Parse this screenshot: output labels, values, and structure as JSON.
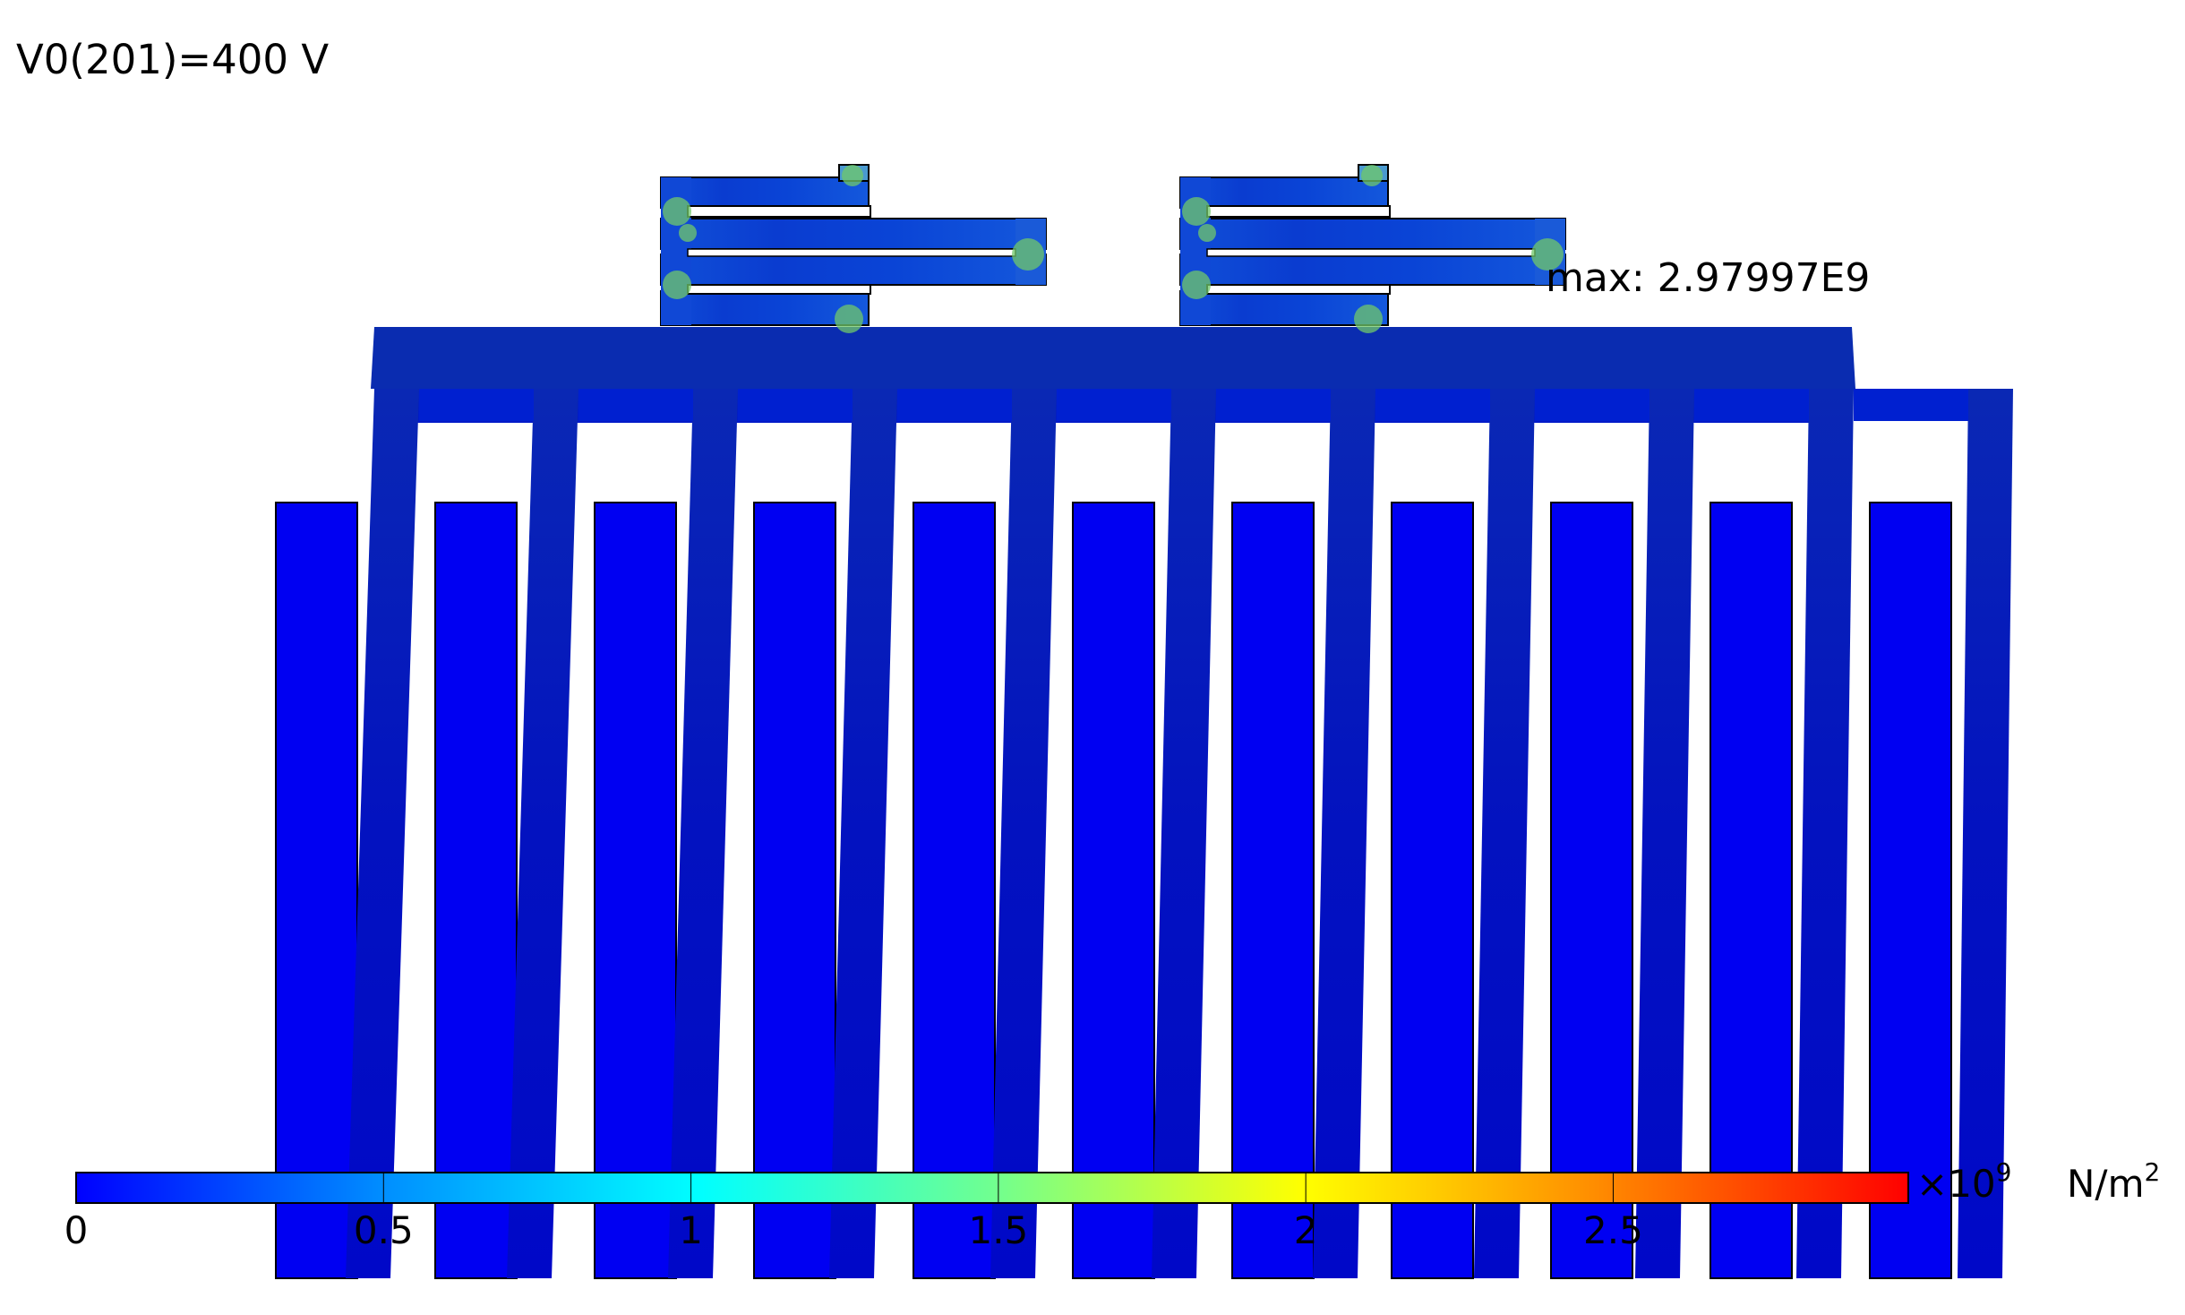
{
  "header": {
    "parameter_text": "V0(201)=400 V"
  },
  "annotation": {
    "max_text": "max: 2.97997E9"
  },
  "colorbar": {
    "tick_labels": [
      "0",
      "0.5",
      "1",
      "1.5",
      "2",
      "2.5"
    ],
    "tick_values": [
      0,
      0.5,
      1,
      1.5,
      2,
      2.5
    ],
    "range": [
      0,
      2.97997
    ],
    "multiplier_base": "×10",
    "multiplier_exp": "9",
    "unit_base": "N/m",
    "unit_exp": "2",
    "gradient": [
      "#0000ff",
      "#00a0ff",
      "#00ffff",
      "#80ff80",
      "#ffff00",
      "#ff8000",
      "#ff0000"
    ]
  },
  "colors": {
    "stator": "#0000f2",
    "rotor": "#0008c0",
    "rotor_bar": "#0616ba",
    "spring_base": "#0a40d8",
    "hot_spot": "#8ed84a",
    "outline": "#000000"
  }
}
